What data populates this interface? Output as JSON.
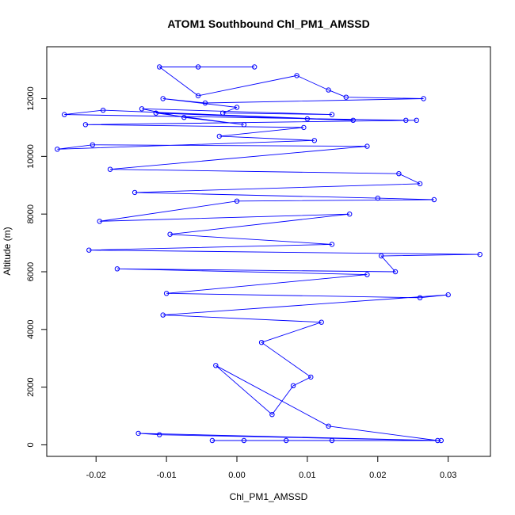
{
  "chart_data": {
    "type": "line",
    "title": "ATOM1 Southbound Chl_PM1_AMSSD",
    "xlabel": "Chl_PM1_AMSSD",
    "ylabel": "Altitude (m)",
    "xlim": [
      -0.027,
      0.036
    ],
    "ylim": [
      -400,
      13800
    ],
    "x_ticks": [
      -0.02,
      -0.01,
      0.0,
      0.01,
      0.02,
      0.03
    ],
    "x_tick_labels": [
      "-0.02",
      "-0.01",
      "0.00",
      "0.01",
      "0.02",
      "0.03"
    ],
    "y_ticks": [
      0,
      2000,
      4000,
      6000,
      8000,
      10000,
      12000
    ],
    "y_tick_labels": [
      "0",
      "2000",
      "4000",
      "6000",
      "8000",
      "10000",
      "12000"
    ],
    "series_color": "#0000ff",
    "markers": "open-circle",
    "series": [
      {
        "x": [
          0.0025,
          -0.0055,
          -0.011,
          -0.0055,
          0.0085,
          0.013,
          0.0155,
          0.0265,
          -0.0045,
          -0.0105,
          0.0,
          -0.002,
          0.0135,
          -0.0135,
          -0.0075,
          0.001,
          -0.0115,
          0.01,
          0.0165,
          -0.019,
          -0.0245,
          0.024,
          0.0255,
          -0.0215,
          0.0095,
          -0.0025,
          0.011,
          -0.0255,
          -0.0205,
          0.0185,
          -0.018,
          0.023,
          0.026,
          -0.0145,
          0.02,
          0.028,
          0.0,
          -0.0195,
          0.016,
          -0.0095,
          0.0135,
          -0.021,
          0.0345,
          0.0205,
          0.0225,
          -0.017,
          0.0185,
          -0.01,
          0.026,
          0.03,
          -0.0105,
          0.012,
          0.0035,
          0.0105,
          0.008,
          0.005,
          -0.003,
          0.013,
          0.0285,
          -0.014,
          -0.011,
          0.029,
          -0.0035,
          0.0135,
          0.001,
          0.007
        ],
        "y": [
          13100,
          13100,
          13100,
          12100,
          12800,
          12300,
          12050,
          12000,
          11850,
          12000,
          11700,
          11500,
          11450,
          11650,
          11350,
          11100,
          11500,
          11300,
          11250,
          11600,
          11450,
          11250,
          11250,
          11100,
          11000,
          10700,
          10550,
          10250,
          10400,
          10350,
          9550,
          9400,
          9050,
          8750,
          8550,
          8500,
          8450,
          7750,
          8000,
          7300,
          6950,
          6750,
          6600,
          6550,
          6000,
          6100,
          5900,
          5250,
          5100,
          5200,
          4500,
          4250,
          3550,
          2350,
          2050,
          1050,
          2750,
          650,
          150,
          400,
          350,
          150,
          150,
          150,
          150,
          150
        ]
      }
    ]
  }
}
